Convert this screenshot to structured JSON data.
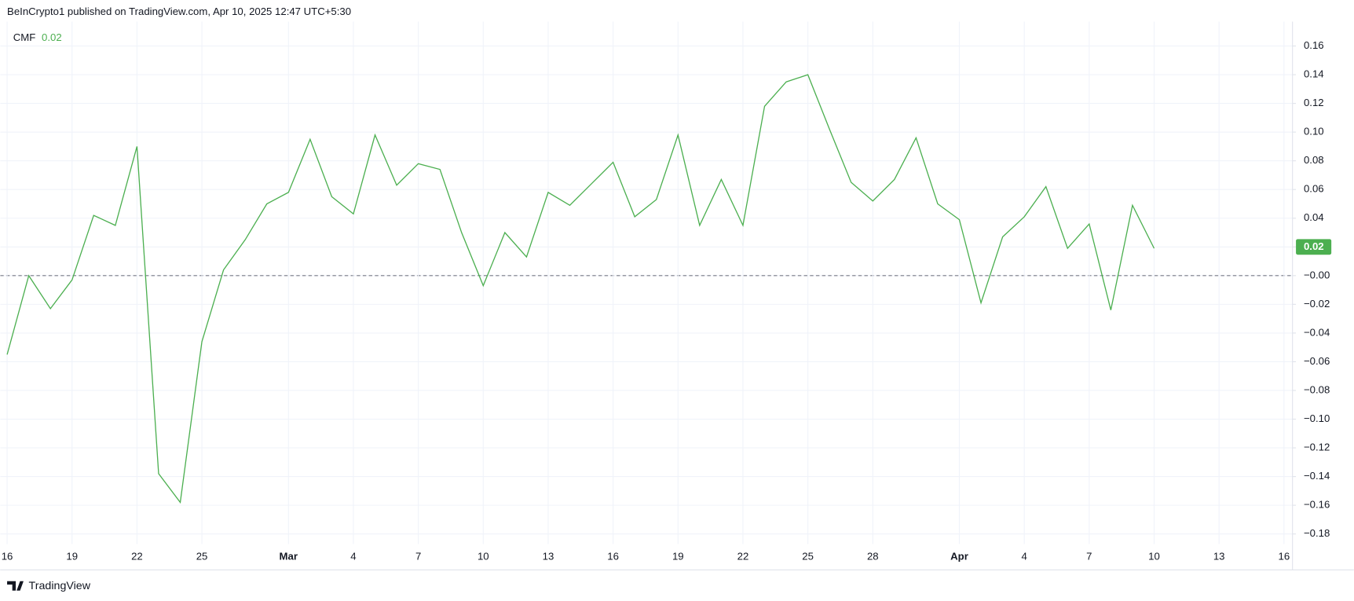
{
  "header": "BeInCrypto1 published on TradingView.com, Apr 10, 2025 12:47 UTC+5:30",
  "footer": "TradingView",
  "chart_data": {
    "type": "line",
    "indicator": "CMF",
    "current_value": 0.02,
    "color": "#4caf50",
    "grid": true,
    "zero_line": true,
    "categories": [
      "16",
      null,
      null,
      "19",
      null,
      null,
      "22",
      null,
      null,
      "25",
      null,
      null,
      null,
      "Mar",
      null,
      null,
      "4",
      null,
      null,
      "7",
      null,
      null,
      "10",
      null,
      null,
      "13",
      null,
      null,
      "16",
      null,
      null,
      "19",
      null,
      null,
      "22",
      null,
      null,
      "25",
      null,
      null,
      "28",
      null,
      null,
      null,
      "Apr",
      null,
      null,
      "4",
      null,
      null,
      "7",
      null,
      null,
      "10",
      null,
      null,
      "13",
      null,
      null,
      "16"
    ],
    "values": [
      -0.055,
      0.0,
      -0.023,
      -0.003,
      0.042,
      0.035,
      0.09,
      -0.138,
      -0.158,
      -0.046,
      0.004,
      0.025,
      0.05,
      0.058,
      0.095,
      0.055,
      0.043,
      0.098,
      0.063,
      0.078,
      0.074,
      0.03,
      -0.007,
      0.03,
      0.013,
      0.058,
      0.049,
      0.064,
      0.079,
      0.041,
      0.053,
      0.098,
      0.035,
      0.067,
      0.035,
      0.118,
      0.135,
      0.14,
      0.102,
      0.065,
      0.052,
      0.067,
      0.096,
      0.05,
      0.039,
      -0.019,
      0.027,
      0.041,
      0.062,
      0.019,
      0.036,
      -0.024,
      0.049,
      0.019,
      null,
      null,
      null,
      null,
      null,
      null
    ],
    "ylim": [
      -0.187,
      0.177
    ],
    "yticks": [
      0.16,
      0.14,
      0.12,
      {
        "value": 0.1,
        "label": "0.10"
      },
      0.08,
      0.06,
      0.04,
      0.02,
      {
        "value": 0,
        "label": "−0.00"
      },
      {
        "value": -0.02,
        "label": "−0.02"
      },
      {
        "value": -0.04,
        "label": "−0.04"
      },
      {
        "value": -0.06,
        "label": "−0.06"
      },
      {
        "value": -0.08,
        "label": "−0.08"
      },
      {
        "value": -0.1,
        "label": "−0.10"
      },
      {
        "value": -0.12,
        "label": "−0.12"
      },
      {
        "value": -0.14,
        "label": "−0.14"
      },
      {
        "value": -0.16,
        "label": "−0.16"
      },
      {
        "value": -0.18,
        "label": "−0.18"
      }
    ]
  }
}
